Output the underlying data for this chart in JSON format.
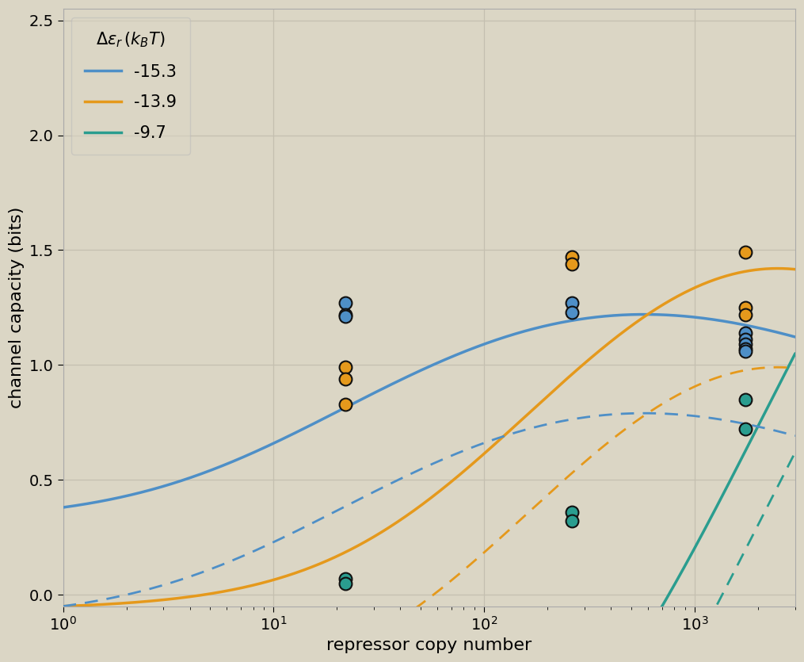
{
  "title": "",
  "xlabel": "repressor copy number",
  "ylabel": "channel capacity (bits)",
  "xlim": [
    1,
    3000
  ],
  "ylim": [
    -0.05,
    2.55
  ],
  "background_color": "#dbd6c5",
  "fig_background": "#dbd6c5",
  "grid_color": "#c4bfb0",
  "energy_colors": [
    "#4e8fc7",
    "#e5991c",
    "#2a9d8f"
  ],
  "shift": -0.43,
  "data_points": {
    "blue": {
      "x": [
        22,
        22,
        22,
        260,
        260,
        1740,
        1740,
        1740,
        1740,
        1740
      ],
      "y": [
        1.27,
        1.22,
        1.21,
        1.27,
        1.23,
        1.14,
        1.11,
        1.09,
        1.07,
        1.06
      ]
    },
    "orange": {
      "x": [
        22,
        22,
        22,
        260,
        260,
        1740,
        1740,
        1740
      ],
      "y": [
        0.99,
        0.94,
        0.83,
        1.47,
        1.44,
        1.49,
        1.25,
        1.22
      ]
    },
    "green": {
      "x": [
        22,
        22,
        260,
        260,
        1740,
        1740
      ],
      "y": [
        0.07,
        0.05,
        0.36,
        0.32,
        0.85,
        0.72
      ]
    }
  },
  "legend_labels": [
    "-15.3",
    "-13.9",
    "-9.7"
  ],
  "fontsize": 16,
  "tick_fontsize": 14,
  "legend_fontsize": 15
}
